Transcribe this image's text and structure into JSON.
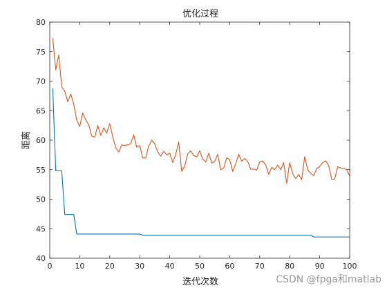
{
  "chart_data": {
    "type": "line",
    "title": "优化过程",
    "xlabel": "迭代次数",
    "ylabel": "距离",
    "xlim": [
      0,
      100
    ],
    "ylim": [
      40,
      80
    ],
    "xticks": [
      0,
      10,
      20,
      30,
      40,
      50,
      60,
      70,
      80,
      90,
      100
    ],
    "yticks": [
      40,
      45,
      50,
      55,
      60,
      65,
      70,
      75,
      80
    ],
    "grid": false,
    "legend": "none",
    "series": [
      {
        "color": "#0072BD",
        "x": [
          1,
          2,
          3,
          4,
          5,
          6,
          7,
          8,
          9,
          10,
          30,
          31,
          87,
          88,
          100
        ],
        "y": [
          68.8,
          54.8,
          54.8,
          54.8,
          47.4,
          47.4,
          47.4,
          47.4,
          44.1,
          44.1,
          44.1,
          43.9,
          43.9,
          43.6,
          43.6
        ]
      },
      {
        "color": "#D95319",
        "x": [
          1,
          2,
          3,
          4,
          5,
          6,
          7,
          8,
          9,
          10,
          11,
          12,
          13,
          14,
          15,
          16,
          17,
          18,
          19,
          20,
          21,
          22,
          23,
          24,
          25,
          26,
          27,
          28,
          29,
          30,
          31,
          32,
          33,
          34,
          35,
          36,
          37,
          38,
          39,
          40,
          41,
          42,
          43,
          44,
          45,
          46,
          47,
          48,
          49,
          50,
          51,
          52,
          53,
          54,
          55,
          56,
          57,
          58,
          59,
          60,
          61,
          62,
          63,
          64,
          65,
          66,
          67,
          68,
          69,
          70,
          71,
          72,
          73,
          74,
          75,
          76,
          77,
          78,
          79,
          80,
          81,
          82,
          83,
          84,
          85,
          86,
          87,
          88,
          89,
          90,
          91,
          92,
          93,
          94,
          95,
          96,
          97,
          98,
          99,
          100
        ],
        "y": [
          77.3,
          71.9,
          74.4,
          69.0,
          68.3,
          66.5,
          67.8,
          66.1,
          63.4,
          62.3,
          64.6,
          63.4,
          62.6,
          60.7,
          60.5,
          62.5,
          60.8,
          62.1,
          61.2,
          62.8,
          60.6,
          58.7,
          58.0,
          59.2,
          59.1,
          59.2,
          59.4,
          60.9,
          58.8,
          59.1,
          57.0,
          57.0,
          59.0,
          60.0,
          59.4,
          58.0,
          57.3,
          58.1,
          57.5,
          57.8,
          56.2,
          57.6,
          59.7,
          54.7,
          55.6,
          57.7,
          58.2,
          57.4,
          57.2,
          58.2,
          56.8,
          56.3,
          57.8,
          56.1,
          56.4,
          57.6,
          55.0,
          55.3,
          57.0,
          56.7,
          54.7,
          56.0,
          57.6,
          56.4,
          56.9,
          56.4,
          55.1,
          55.1,
          54.9,
          56.3,
          56.5,
          55.8,
          54.2,
          55.4,
          55.0,
          55.8,
          55.0,
          56.2,
          52.7,
          56.2,
          54.3,
          53.5,
          54.2,
          53.3,
          57.2,
          55.0,
          54.4,
          54.0,
          55.2,
          55.5,
          56.2,
          56.5,
          55.7,
          53.4,
          53.4,
          55.5,
          55.3,
          55.2,
          55.0,
          53.9
        ]
      }
    ]
  },
  "watermark": "CSDN @fpga和matlab"
}
